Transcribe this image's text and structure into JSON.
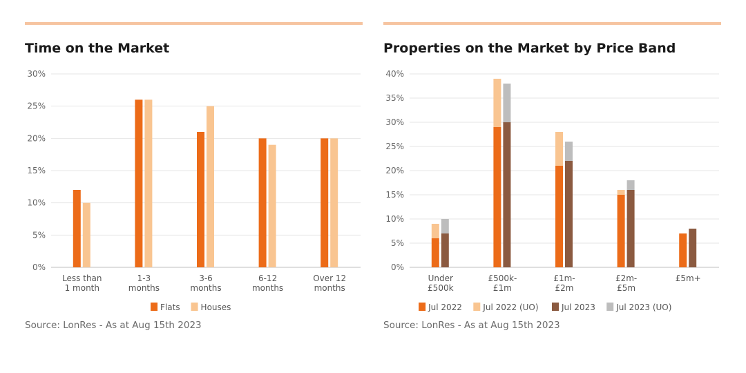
{
  "colors": {
    "rule": "#f6c4a0",
    "flats": "#ec6b18",
    "houses": "#f9c591",
    "jul2022": "#ec6b18",
    "jul2022_uo": "#f9c591",
    "jul2023": "#8b5a40",
    "jul2023_uo": "#bdbdbd"
  },
  "left": {
    "title": "Time on the Market",
    "source": "Source: LonRes - As at Aug 15th 2023",
    "chart_data": {
      "type": "bar",
      "title": "Time on the Market",
      "categories": [
        [
          "Less than",
          "1 month"
        ],
        [
          "1-3",
          "months"
        ],
        [
          "3-6",
          "months"
        ],
        [
          "6-12",
          "months"
        ],
        [
          "Over 12",
          "months"
        ]
      ],
      "series": [
        {
          "name": "Flats",
          "color": "#ec6b18",
          "values": [
            12,
            26,
            21,
            20,
            20
          ]
        },
        {
          "name": "Houses",
          "color": "#f9c591",
          "values": [
            10,
            26,
            25,
            19,
            20
          ]
        }
      ],
      "ylim": [
        0,
        30
      ],
      "yticks": [
        "0%",
        "5%",
        "10%",
        "15%",
        "20%",
        "25%",
        "30%"
      ],
      "grid": true,
      "legend": "bottom"
    }
  },
  "right": {
    "title": "Properties on the Market by Price Band",
    "source": "Source: LonRes - As at Aug 15th 2023",
    "chart_data": {
      "type": "bar",
      "stacked": true,
      "title": "Properties on the Market by Price Band",
      "categories": [
        [
          "Under",
          "£500k"
        ],
        [
          "£500k-",
          "£1m"
        ],
        [
          "£1m-",
          "£2m"
        ],
        [
          "£2m-",
          "£5m"
        ],
        [
          "£5m+"
        ]
      ],
      "series": [
        {
          "name": "Jul 2022",
          "color": "#ec6b18",
          "group": "2022",
          "values": [
            6,
            29,
            21,
            15,
            7
          ]
        },
        {
          "name": "Jul 2022 (UO)",
          "color": "#f9c591",
          "group": "2022",
          "values": [
            3,
            10,
            7,
            1,
            0
          ]
        },
        {
          "name": "Jul 2023",
          "color": "#8b5a40",
          "group": "2023",
          "values": [
            7,
            30,
            22,
            16,
            8
          ]
        },
        {
          "name": "Jul 2023 (UO)",
          "color": "#bdbdbd",
          "group": "2023",
          "values": [
            3,
            8,
            4,
            2,
            0
          ]
        }
      ],
      "ylim": [
        0,
        40
      ],
      "yticks": [
        "0%",
        "5%",
        "10%",
        "15%",
        "20%",
        "25%",
        "30%",
        "35%",
        "40%"
      ],
      "grid": true,
      "legend": "bottom"
    }
  }
}
